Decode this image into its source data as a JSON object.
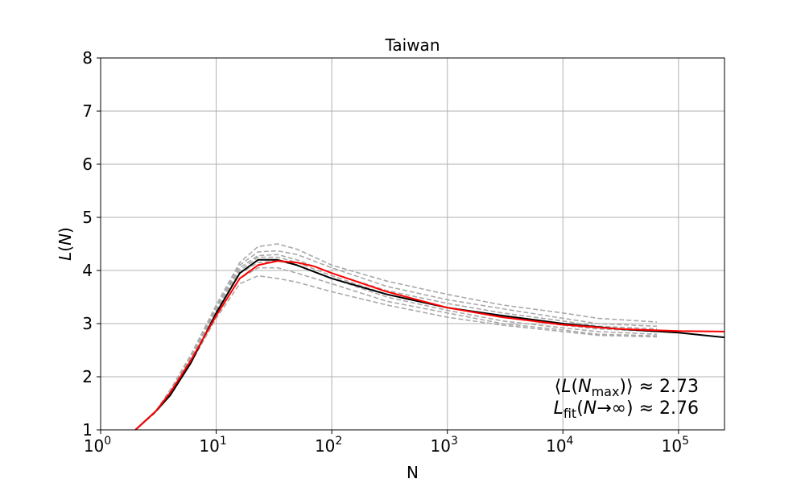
{
  "chart_data": {
    "type": "line",
    "title": "Taiwan",
    "xlabel": "N",
    "ylabel": "L(N)",
    "xscale": "log",
    "xlim": [
      1,
      250000
    ],
    "ylim": [
      1,
      8
    ],
    "grid": true,
    "x_ticks": [
      {
        "value": 1,
        "base": "10",
        "exp": "0"
      },
      {
        "value": 10,
        "base": "10",
        "exp": "1"
      },
      {
        "value": 100,
        "base": "10",
        "exp": "2"
      },
      {
        "value": 1000,
        "base": "10",
        "exp": "3"
      },
      {
        "value": 10000,
        "base": "10",
        "exp": "4"
      },
      {
        "value": 100000,
        "base": "10",
        "exp": "5"
      }
    ],
    "y_ticks": [
      {
        "value": 1,
        "label": "1"
      },
      {
        "value": 2,
        "label": "2"
      },
      {
        "value": 3,
        "label": "3"
      },
      {
        "value": 4,
        "label": "4"
      },
      {
        "value": 5,
        "label": "5"
      },
      {
        "value": 6,
        "label": "6"
      },
      {
        "value": 7,
        "label": "7"
      },
      {
        "value": 8,
        "label": "8"
      }
    ],
    "series": [
      {
        "color": "#aaaaaa",
        "style": "dashed",
        "x": [
          2,
          3,
          4,
          6,
          10,
          16,
          23,
          34,
          50,
          100,
          300,
          1000,
          3000,
          10000,
          20000,
          65000
        ],
        "y": [
          1.0,
          1.35,
          1.75,
          2.4,
          3.35,
          4.15,
          4.45,
          4.5,
          4.4,
          4.1,
          3.8,
          3.55,
          3.35,
          3.2,
          3.1,
          3.03
        ]
      },
      {
        "color": "#aaaaaa",
        "style": "dashed",
        "x": [
          2,
          3,
          4,
          6,
          10,
          16,
          23,
          34,
          50,
          100,
          300,
          1000,
          3000,
          10000,
          20000,
          65000
        ],
        "y": [
          1.0,
          1.35,
          1.75,
          2.4,
          3.3,
          4.1,
          4.35,
          4.37,
          4.3,
          4.05,
          3.7,
          3.45,
          3.28,
          3.1,
          3.0,
          2.95
        ]
      },
      {
        "color": "#aaaaaa",
        "style": "dashed",
        "x": [
          2,
          3,
          4,
          6,
          10,
          16,
          23,
          34,
          50,
          100,
          300,
          1000,
          3000,
          10000,
          20000,
          65000
        ],
        "y": [
          1.0,
          1.35,
          1.75,
          2.35,
          3.3,
          4.05,
          4.28,
          4.3,
          4.2,
          3.95,
          3.62,
          3.38,
          3.2,
          3.05,
          2.95,
          2.9
        ]
      },
      {
        "color": "#aaaaaa",
        "style": "dashed",
        "x": [
          2,
          3,
          4,
          6,
          10,
          16,
          23,
          34,
          50,
          100,
          300,
          1000,
          3000,
          10000,
          20000,
          65000
        ],
        "y": [
          1.0,
          1.35,
          1.7,
          2.35,
          3.25,
          4.0,
          4.25,
          4.25,
          4.15,
          3.9,
          3.55,
          3.3,
          3.12,
          2.97,
          2.9,
          2.85
        ]
      },
      {
        "color": "#aaaaaa",
        "style": "dashed",
        "x": [
          2,
          3,
          4,
          6,
          10,
          16,
          23,
          34,
          50,
          100,
          300,
          1000,
          3000,
          10000,
          20000,
          65000
        ],
        "y": [
          1.0,
          1.35,
          1.7,
          2.3,
          3.2,
          3.95,
          4.15,
          4.18,
          4.1,
          3.85,
          3.5,
          3.25,
          3.05,
          2.92,
          2.85,
          2.8
        ]
      },
      {
        "color": "#aaaaaa",
        "style": "dashed",
        "x": [
          2,
          3,
          4,
          6,
          10,
          16,
          23,
          34,
          50,
          100,
          300,
          1000,
          3000,
          10000,
          20000,
          65000
        ],
        "y": [
          1.0,
          1.35,
          1.7,
          2.3,
          3.15,
          3.85,
          4.05,
          4.05,
          3.95,
          3.75,
          3.42,
          3.2,
          3.0,
          2.88,
          2.8,
          2.77
        ]
      },
      {
        "color": "#aaaaaa",
        "style": "dashed",
        "x": [
          2,
          3,
          4,
          6,
          10,
          16,
          23,
          34,
          50,
          100,
          300,
          1000,
          3000,
          10000,
          20000,
          65000
        ],
        "y": [
          1.0,
          1.33,
          1.65,
          2.25,
          3.1,
          3.75,
          3.9,
          3.85,
          3.78,
          3.6,
          3.35,
          3.12,
          2.97,
          2.85,
          2.78,
          2.75
        ]
      },
      {
        "color": "#000000",
        "style": "solid",
        "x": [
          2,
          3,
          4,
          6,
          10,
          16,
          23,
          34,
          50,
          100,
          300,
          1000,
          3000,
          10000,
          30000,
          100000,
          250000
        ],
        "y": [
          1.0,
          1.35,
          1.65,
          2.25,
          3.2,
          3.95,
          4.2,
          4.2,
          4.1,
          3.85,
          3.55,
          3.3,
          3.15,
          3.0,
          2.9,
          2.83,
          2.74
        ]
      },
      {
        "color": "#ff0000",
        "style": "solid",
        "x": [
          2,
          3,
          4,
          6,
          10,
          16,
          23,
          34,
          50,
          70,
          100,
          300,
          1000,
          3000,
          10000,
          30000,
          100000,
          250000
        ],
        "y": [
          1.0,
          1.35,
          1.7,
          2.3,
          3.15,
          3.85,
          4.1,
          4.18,
          4.15,
          4.08,
          3.95,
          3.6,
          3.3,
          3.12,
          2.98,
          2.9,
          2.86,
          2.85
        ]
      }
    ],
    "annotations": [
      {
        "parts": [
          {
            "t": "⟨"
          },
          {
            "t": "L",
            "it": true
          },
          {
            "t": "("
          },
          {
            "t": "N",
            "it": true
          },
          {
            "t": "max",
            "sub": true
          },
          {
            "t": ")⟩ ≈ 2.73"
          }
        ]
      },
      {
        "parts": [
          {
            "t": "L",
            "it": true
          },
          {
            "t": "fit",
            "sub": true
          },
          {
            "t": "("
          },
          {
            "t": "N",
            "it": true
          },
          {
            "t": "→∞) ≈ 2.76"
          }
        ]
      }
    ]
  }
}
